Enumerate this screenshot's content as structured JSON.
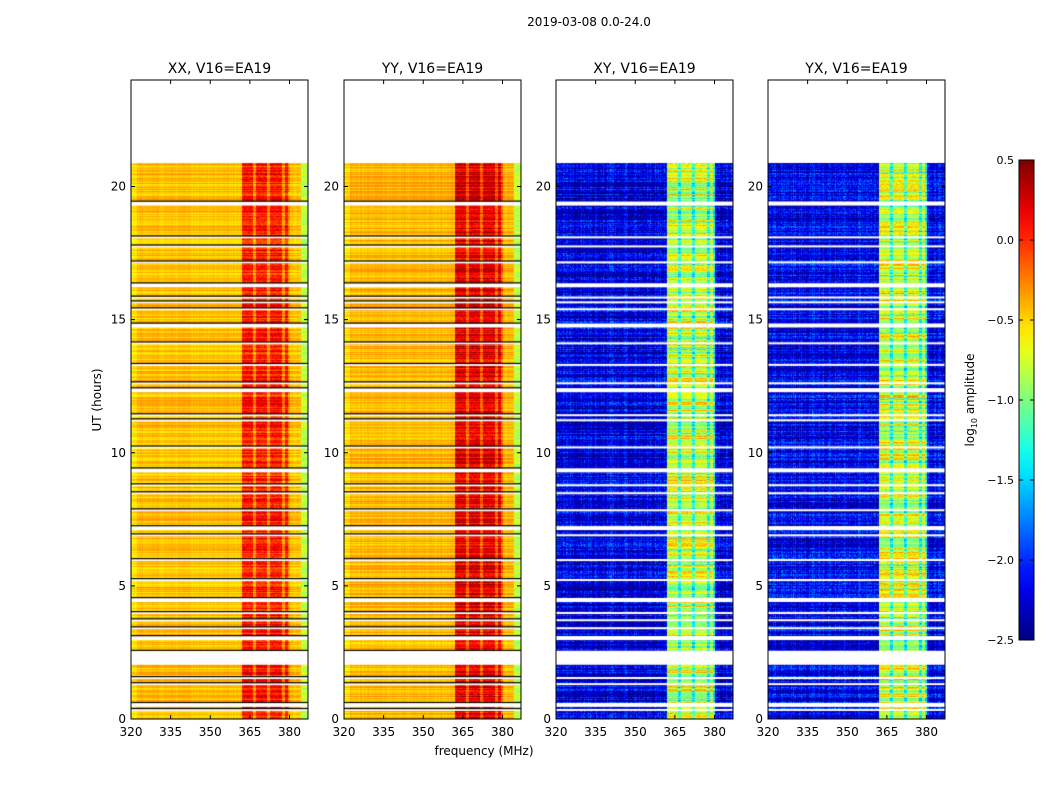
{
  "chart_data": {
    "type": "heatmap",
    "suptitle": "2019-03-08 0.0-24.0",
    "xlabel": "frequency (MHz)",
    "ylabel": "UT (hours)",
    "xlim": [
      320,
      387
    ],
    "ylim": [
      0,
      24
    ],
    "xticks": [
      320,
      335,
      350,
      365,
      380
    ],
    "xtick_labels": [
      "320",
      "335",
      "350",
      "365",
      "380"
    ],
    "yticks": [
      0,
      5,
      10,
      15,
      20
    ],
    "ytick_labels": [
      "0",
      "5",
      "10",
      "15",
      "20"
    ],
    "data_time_range_hours": [
      0,
      20.9
    ],
    "rfi_band_mhz": [
      362,
      380
    ],
    "flagged_times_hours": [
      19.36,
      18.09,
      17.75,
      17.15,
      16.29,
      15.83,
      15.65,
      15.39,
      14.78,
      14.11,
      13.3,
      12.61,
      12.35,
      11.41,
      11.22,
      10.2,
      9.34,
      8.78,
      8.48,
      7.84,
      7.17,
      6.9,
      5.97,
      5.22,
      4.47,
      3.98,
      3.71,
      3.41,
      3.04,
      2.3,
      1.54,
      1.31,
      0.53,
      0.34
    ],
    "panels": [
      {
        "title": "XX, V16=EA19",
        "base_level": -0.45,
        "band_level": 0.05
      },
      {
        "title": "YY, V16=EA19",
        "base_level": -0.42,
        "band_level": 0.2
      },
      {
        "title": "XY, V16=EA19",
        "base_level": -2.2,
        "band_level": -0.75
      },
      {
        "title": "YX, V16=EA19",
        "base_level": -2.15,
        "band_level": -0.75
      }
    ],
    "colorbar": {
      "label": "log10 amplitude",
      "label_main": "log",
      "label_sub": "10",
      "label_rest": " amplitude",
      "colormap": "jet",
      "range": [
        -2.5,
        0.5
      ],
      "ticks": [
        -2.5,
        -2.0,
        -1.5,
        -1.0,
        -0.5,
        0.0,
        0.5
      ],
      "tick_labels": [
        "−2.5",
        "−2.0",
        "−1.5",
        "−1.0",
        "−0.5",
        "0.0",
        "0.5"
      ]
    }
  }
}
